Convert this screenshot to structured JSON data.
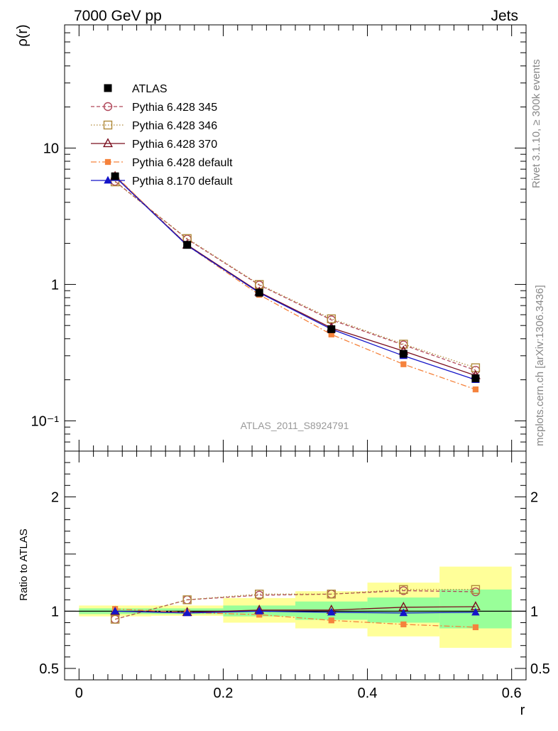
{
  "header": {
    "left_label": "7000 GeV pp",
    "right_label": "Jets"
  },
  "side_labels": {
    "rivet": "Rivet 3.1.10, ≥ 300k events",
    "mcplots": "mcplots.cern.ch [arXiv:1306.3436]"
  },
  "analysis_id": "ATLAS_2011_S8924791",
  "chart_data": [
    {
      "type": "line",
      "panel": "main",
      "ylabel": "ρ(r)",
      "yscale": "log",
      "ylim": [
        0.06,
        80
      ],
      "xlim": [
        -0.02,
        0.62
      ],
      "x": [
        0.05,
        0.15,
        0.25,
        0.35,
        0.45,
        0.55
      ],
      "ytick_labels": [
        "10⁻¹",
        "1",
        "10"
      ],
      "legend_position": "top-left",
      "series": [
        {
          "name": "ATLAS",
          "color": "#000000",
          "marker": "square-filled",
          "line": "none",
          "values": [
            6.2,
            1.95,
            0.87,
            0.47,
            0.31,
            0.205
          ]
        },
        {
          "name": "Pythia 6.428 345",
          "color": "#b0475a",
          "marker": "circle-open",
          "line": "dashed",
          "values": [
            5.7,
            2.15,
            0.99,
            0.55,
            0.36,
            0.235
          ]
        },
        {
          "name": "Pythia 6.428 346",
          "color": "#b08a3a",
          "marker": "square-open",
          "line": "dotted",
          "values": [
            5.65,
            2.17,
            1.0,
            0.56,
            0.365,
            0.245
          ]
        },
        {
          "name": "Pythia 6.428 370",
          "color": "#7a0e1e",
          "marker": "triangle-open",
          "line": "solid",
          "values": [
            6.2,
            1.95,
            0.88,
            0.48,
            0.325,
            0.215
          ]
        },
        {
          "name": "Pythia 6.428 default",
          "color": "#f5823c",
          "marker": "square-filled-small",
          "line": "dashdot",
          "values": [
            6.3,
            1.93,
            0.84,
            0.43,
            0.26,
            0.17
          ]
        },
        {
          "name": "Pythia 8.170 default",
          "color": "#1414c8",
          "marker": "triangle-filled",
          "line": "solid",
          "values": [
            6.15,
            1.93,
            0.87,
            0.47,
            0.3,
            0.2
          ]
        }
      ]
    },
    {
      "type": "line",
      "panel": "ratio",
      "xlabel": "r",
      "ylabel": "Ratio to ATLAS",
      "ylim": [
        0.4,
        2.4
      ],
      "xlim": [
        -0.02,
        0.62
      ],
      "xticks": [
        0,
        0.2,
        0.4,
        0.6
      ],
      "xtick_labels": [
        "0",
        "0.2",
        "0.4",
        "0.6"
      ],
      "yticks": [
        0.5,
        1,
        2
      ],
      "ytick_labels": [
        "0.5",
        "1",
        "2"
      ],
      "x": [
        0.05,
        0.15,
        0.25,
        0.35,
        0.45,
        0.55
      ],
      "bands": {
        "x_edges": [
          0.0,
          0.1,
          0.2,
          0.3,
          0.4,
          0.5,
          0.6
        ],
        "green_low": [
          0.975,
          0.975,
          0.955,
          0.925,
          0.9,
          0.85
        ],
        "green_high": [
          1.025,
          1.025,
          1.05,
          1.085,
          1.12,
          1.19
        ],
        "yellow_low": [
          0.955,
          0.96,
          0.9,
          0.85,
          0.78,
          0.68
        ],
        "yellow_high": [
          1.05,
          1.05,
          1.115,
          1.175,
          1.25,
          1.39
        ],
        "green_color": "#99ff99",
        "yellow_color": "#ffff99"
      },
      "series": [
        {
          "name": "Pythia 6.428 345",
          "color": "#b0475a",
          "marker": "circle-open",
          "line": "dashed",
          "values": [
            0.93,
            1.1,
            1.14,
            1.15,
            1.18,
            1.17
          ]
        },
        {
          "name": "Pythia 6.428 346",
          "color": "#b08a3a",
          "marker": "square-open",
          "line": "dotted",
          "values": [
            0.93,
            1.1,
            1.15,
            1.15,
            1.19,
            1.19
          ]
        },
        {
          "name": "Pythia 6.428 370",
          "color": "#7a0e1e",
          "marker": "triangle-open",
          "line": "solid",
          "values": [
            1.0,
            0.99,
            1.01,
            1.01,
            1.035,
            1.04
          ]
        },
        {
          "name": "Pythia 6.428 default",
          "color": "#f5823c",
          "marker": "square-filled-small",
          "line": "dashdot",
          "values": [
            1.02,
            0.99,
            0.97,
            0.92,
            0.885,
            0.86
          ]
        },
        {
          "name": "Pythia 8.170 default",
          "color": "#1414c8",
          "marker": "triangle-filled",
          "line": "solid",
          "values": [
            1.0,
            0.985,
            1.0,
            0.99,
            0.985,
            0.99
          ]
        }
      ]
    }
  ]
}
